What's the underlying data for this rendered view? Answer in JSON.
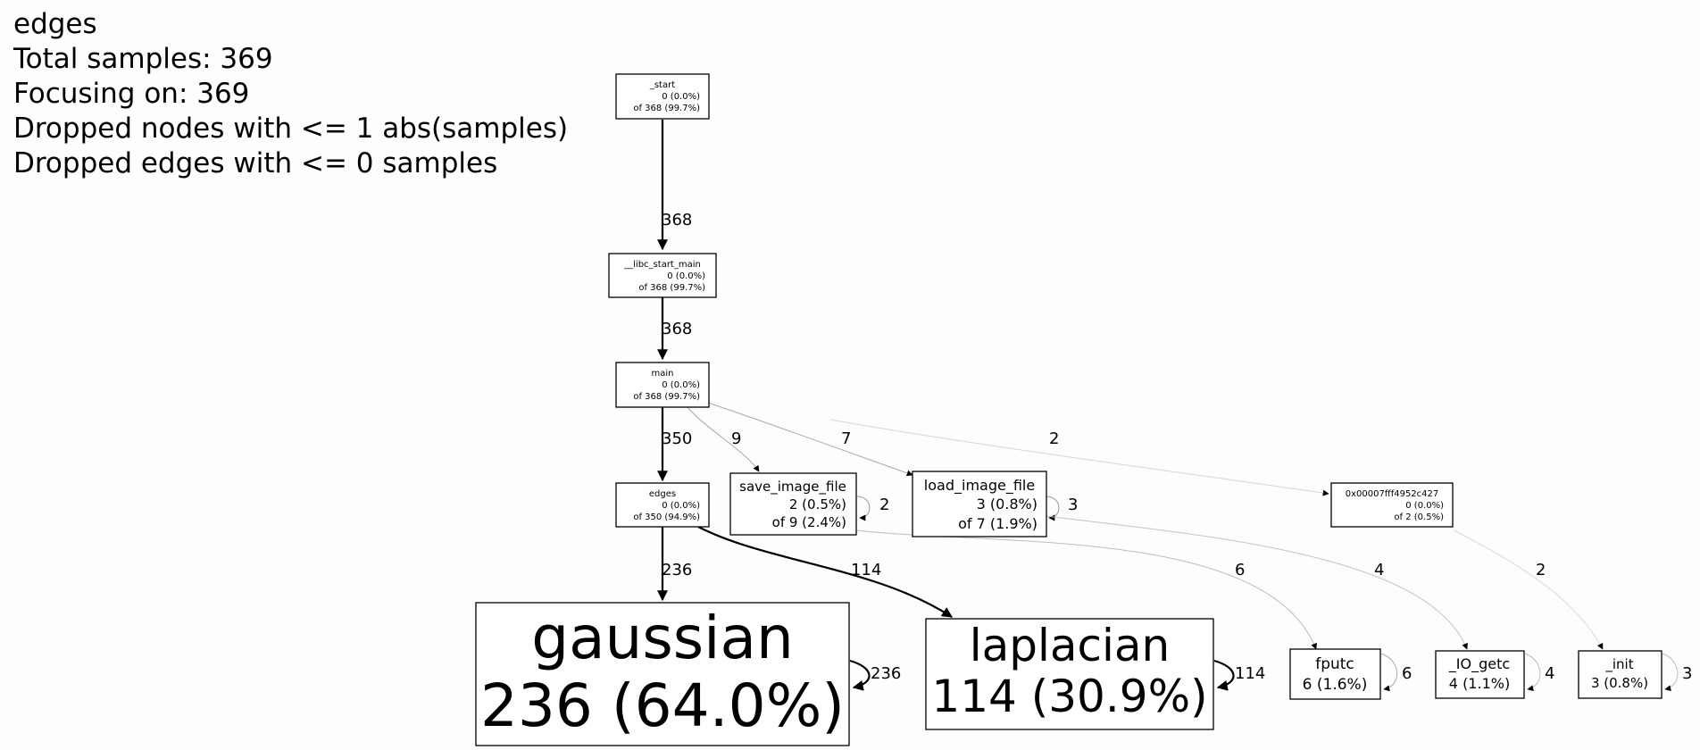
{
  "header": {
    "lines": [
      "edges",
      "Total samples: 369",
      "Focusing on: 369",
      "Dropped nodes with <= 1 abs(samples)",
      "Dropped edges with <= 0 samples"
    ]
  },
  "graph": {
    "nodes": [
      {
        "id": "start",
        "name": "_start",
        "flat": "0 (0.0%)",
        "cum": "of 368 (99.7%)"
      },
      {
        "id": "libc_start_main",
        "name": "__libc_start_main",
        "flat": "0 (0.0%)",
        "cum": "of 368 (99.7%)"
      },
      {
        "id": "main",
        "name": "main",
        "flat": "0 (0.0%)",
        "cum": "of 368 (99.7%)"
      },
      {
        "id": "edges",
        "name": "edges",
        "flat": "0 (0.0%)",
        "cum": "of 350 (94.9%)"
      },
      {
        "id": "save_image_file",
        "name": "save_image_file",
        "flat": "2 (0.5%)",
        "cum": "of 9 (2.4%)"
      },
      {
        "id": "load_image_file",
        "name": "load_image_file",
        "flat": "3 (0.8%)",
        "cum": "of 7 (1.9%)"
      },
      {
        "id": "addr_0x00007fff4952c427",
        "name": "0x00007fff4952c427",
        "flat": "0 (0.0%)",
        "cum": "of 2 (0.5%)"
      },
      {
        "id": "gaussian",
        "name": "gaussian",
        "flat": "236 (64.0%)",
        "cum": ""
      },
      {
        "id": "laplacian",
        "name": "laplacian",
        "flat": "114 (30.9%)",
        "cum": ""
      },
      {
        "id": "fputc",
        "name": "fputc",
        "flat": "6 (1.6%)",
        "cum": ""
      },
      {
        "id": "io_getc",
        "name": "_IO_getc",
        "flat": "4 (1.1%)",
        "cum": ""
      },
      {
        "id": "init",
        "name": "_init",
        "flat": "3 (0.8%)",
        "cum": ""
      }
    ],
    "edges": [
      {
        "from": "start",
        "to": "libc_start_main",
        "samples": "368"
      },
      {
        "from": "libc_start_main",
        "to": "main",
        "samples": "368"
      },
      {
        "from": "main",
        "to": "edges",
        "samples": "350"
      },
      {
        "from": "main",
        "to": "save_image_file",
        "samples": "9"
      },
      {
        "from": "main",
        "to": "load_image_file",
        "samples": "7"
      },
      {
        "from": "main",
        "to": "addr_0x00007fff4952c427",
        "samples": "2"
      },
      {
        "from": "edges",
        "to": "gaussian",
        "samples": "236"
      },
      {
        "from": "edges",
        "to": "laplacian",
        "samples": "114"
      },
      {
        "from": "save_image_file",
        "to": "save_image_file",
        "samples": "2"
      },
      {
        "from": "load_image_file",
        "to": "load_image_file",
        "samples": "3"
      },
      {
        "from": "save_image_file",
        "to": "fputc",
        "samples": "6"
      },
      {
        "from": "load_image_file",
        "to": "io_getc",
        "samples": "4"
      },
      {
        "from": "addr_0x00007fff4952c427",
        "to": "init",
        "samples": "2"
      },
      {
        "from": "gaussian",
        "to": "gaussian",
        "samples": "236"
      },
      {
        "from": "laplacian",
        "to": "laplacian",
        "samples": "114"
      },
      {
        "from": "fputc",
        "to": "fputc",
        "samples": "6"
      },
      {
        "from": "io_getc",
        "to": "io_getc",
        "samples": "4"
      },
      {
        "from": "init",
        "to": "init",
        "samples": "3"
      }
    ]
  }
}
